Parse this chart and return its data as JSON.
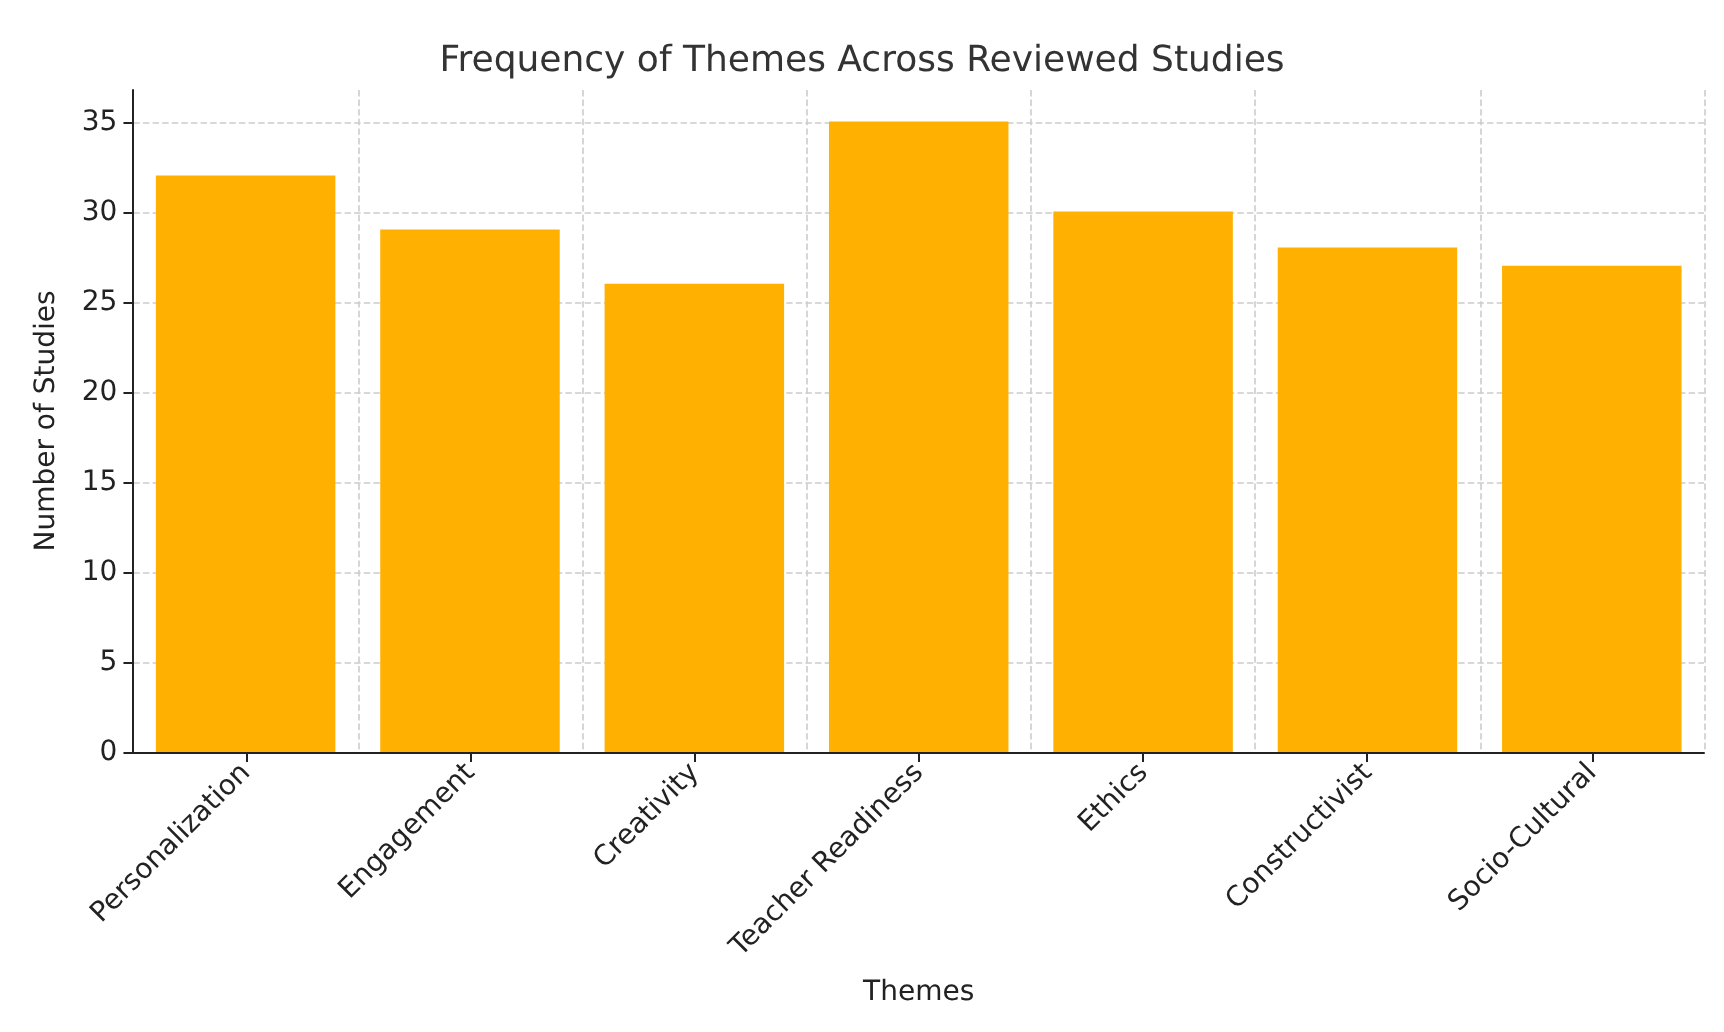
{
  "chart_data": {
    "type": "bar",
    "title": "Frequency of Themes Across Reviewed Studies",
    "xlabel": "Themes",
    "ylabel": "Number of Studies",
    "categories": [
      "Personalization",
      "Engagement",
      "Creativity",
      "Teacher Readiness",
      "Ethics",
      "Constructivist",
      "Socio-Cultural"
    ],
    "values": [
      32,
      29,
      26,
      35,
      30,
      28,
      27
    ],
    "color": "#ffb000",
    "ylim": [
      0,
      36.75
    ],
    "yticks": [
      0,
      5,
      10,
      15,
      20,
      25,
      30,
      35
    ],
    "grid": true
  }
}
